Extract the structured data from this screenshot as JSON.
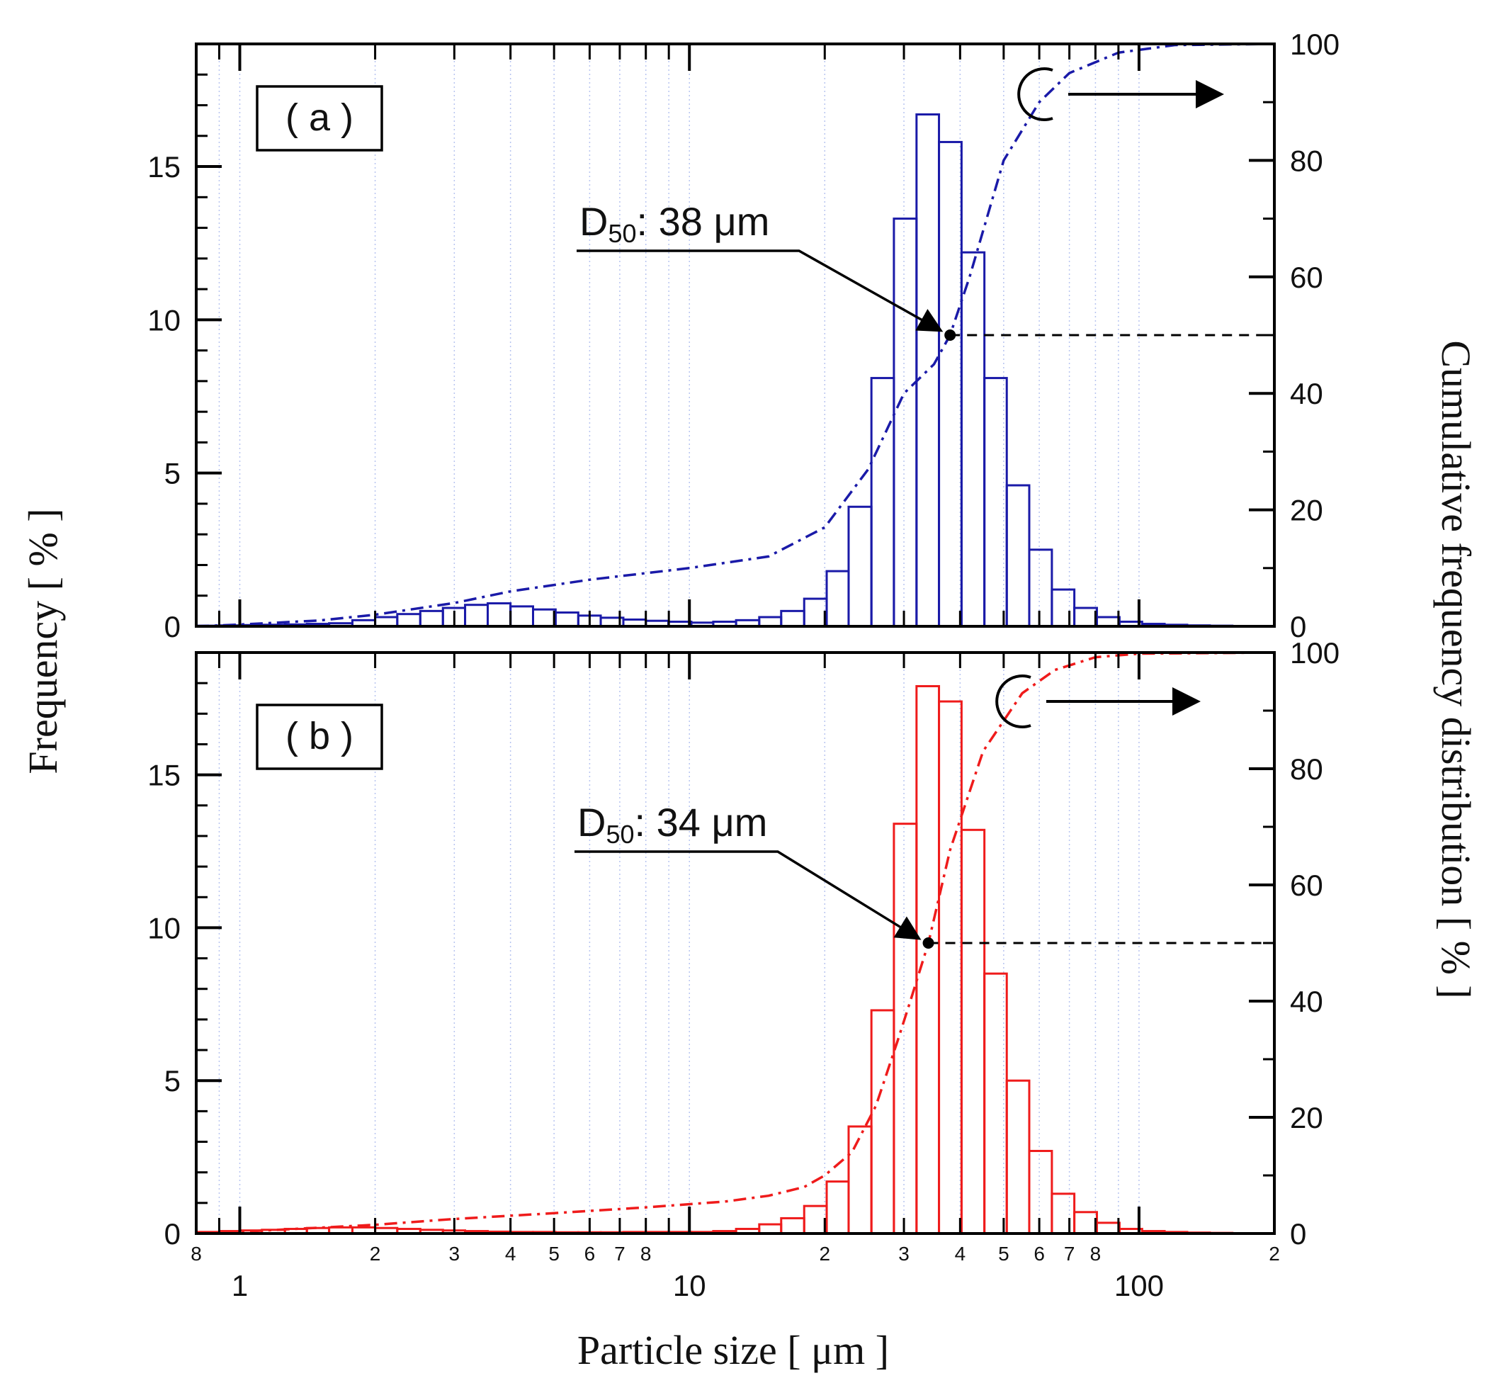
{
  "chart_data": [
    {
      "type": "bar",
      "panel_label": "( a )",
      "color": "#1a1aa8",
      "title": "",
      "xlabel": "Particle size [ μm ]",
      "ylabel": "Frequency [ % ]",
      "y2label": "Cumulative frequency distribution [ % ]",
      "xscale": "log",
      "xlim": [
        0.8,
        200
      ],
      "ylim": [
        0,
        19
      ],
      "y2lim": [
        0,
        100
      ],
      "y_ticks": [
        0,
        5,
        10,
        15
      ],
      "y2_ticks": [
        0,
        20,
        40,
        60,
        80,
        100
      ],
      "histogram": {
        "bin_edges": [
          0.8,
          0.9,
          1.0,
          1.12,
          1.26,
          1.41,
          1.58,
          1.78,
          2.0,
          2.24,
          2.52,
          2.83,
          3.17,
          3.56,
          4.0,
          4.49,
          5.04,
          5.66,
          6.35,
          7.13,
          8.0,
          8.98,
          10.1,
          11.3,
          12.7,
          14.3,
          16.0,
          18.0,
          20.2,
          22.6,
          25.4,
          28.5,
          32.0,
          35.9,
          40.3,
          45.3,
          50.8,
          57.0,
          64.0,
          71.8,
          80.6,
          90.5,
          101.6,
          114.0,
          128.0,
          143.7,
          161.3,
          181.0,
          200.0
        ],
        "values": [
          0.02,
          0.03,
          0.04,
          0.05,
          0.06,
          0.08,
          0.1,
          0.2,
          0.3,
          0.4,
          0.5,
          0.6,
          0.7,
          0.75,
          0.65,
          0.55,
          0.45,
          0.35,
          0.28,
          0.22,
          0.18,
          0.15,
          0.12,
          0.15,
          0.2,
          0.3,
          0.5,
          0.9,
          1.8,
          3.9,
          8.1,
          13.3,
          16.7,
          15.8,
          12.2,
          8.1,
          4.6,
          2.5,
          1.2,
          0.6,
          0.3,
          0.15,
          0.08,
          0.05,
          0.03,
          0.02,
          0.01,
          0.01
        ]
      },
      "cumulative": {
        "x": [
          0.8,
          1.0,
          1.5,
          2.0,
          3.0,
          4.0,
          6.0,
          10.0,
          15.0,
          20.0,
          25.0,
          30.0,
          35.0,
          38.0,
          42.0,
          50.0,
          60.0,
          70.0,
          90.0,
          120.0,
          200.0
        ],
        "y": [
          0,
          0.3,
          1,
          2,
          4,
          6,
          8,
          10,
          12,
          17,
          27,
          40,
          45,
          50,
          60,
          80,
          90,
          95,
          98.5,
          99.8,
          100
        ]
      },
      "d50": {
        "label_main": "D",
        "label_sub": "50",
        "label_rest": ": 38 μm",
        "x": 38,
        "cumulative_value": 50
      }
    },
    {
      "type": "bar",
      "panel_label": "( b )",
      "color": "#ef1b1b",
      "title": "",
      "xlabel": "Particle size [ μm ]",
      "ylabel": "Frequency [ % ]",
      "y2label": "Cumulative frequency distribution [ % ]",
      "xscale": "log",
      "xlim": [
        0.8,
        200
      ],
      "ylim": [
        0,
        19
      ],
      "y2lim": [
        0,
        100
      ],
      "y_ticks": [
        0,
        5,
        10,
        15
      ],
      "y2_ticks": [
        0,
        20,
        40,
        60,
        80,
        100
      ],
      "histogram": {
        "bin_edges": [
          0.8,
          0.9,
          1.0,
          1.12,
          1.26,
          1.41,
          1.58,
          1.78,
          2.0,
          2.24,
          2.52,
          2.83,
          3.17,
          3.56,
          4.0,
          4.49,
          5.04,
          5.66,
          6.35,
          7.13,
          8.0,
          8.98,
          10.1,
          11.3,
          12.7,
          14.3,
          16.0,
          18.0,
          20.2,
          22.6,
          25.4,
          28.5,
          32.0,
          35.9,
          40.3,
          45.3,
          50.8,
          57.0,
          64.0,
          71.8,
          80.6,
          90.5,
          101.6,
          114.0,
          128.0,
          143.7,
          161.3,
          181.0,
          200.0
        ],
        "values": [
          0.05,
          0.08,
          0.1,
          0.12,
          0.15,
          0.18,
          0.2,
          0.2,
          0.18,
          0.15,
          0.12,
          0.1,
          0.08,
          0.06,
          0.05,
          0.05,
          0.04,
          0.04,
          0.04,
          0.05,
          0.05,
          0.05,
          0.05,
          0.08,
          0.15,
          0.3,
          0.5,
          0.9,
          1.7,
          3.5,
          7.3,
          13.4,
          17.9,
          17.4,
          13.2,
          8.5,
          5.0,
          2.7,
          1.3,
          0.7,
          0.35,
          0.15,
          0.08,
          0.05,
          0.03,
          0.02,
          0.01,
          0.01
        ]
      },
      "cumulative": {
        "x": [
          0.8,
          1.0,
          1.5,
          2.0,
          3.0,
          5.0,
          8.0,
          12.0,
          15.0,
          18.0,
          20.0,
          23.0,
          26.0,
          29.0,
          31.0,
          34.0,
          38.0,
          45.0,
          55.0,
          65.0,
          80.0,
          100.0,
          200.0
        ],
        "y": [
          0,
          0.3,
          1,
          1.5,
          2.5,
          3.5,
          4.5,
          5.5,
          6.5,
          8,
          10,
          14,
          22,
          33,
          40,
          50,
          66,
          83,
          93,
          97,
          99.2,
          99.8,
          100
        ]
      },
      "d50": {
        "label_main": "D",
        "label_sub": "50",
        "label_rest": ": 34 μm",
        "x": 34,
        "cumulative_value": 50
      }
    }
  ],
  "x_axis": {
    "major_ticks": [
      {
        "value": 1,
        "label": "1"
      },
      {
        "value": 10,
        "label": "10"
      },
      {
        "value": 100,
        "label": "100"
      }
    ],
    "minor_ticks": [
      {
        "value": 0.8,
        "label": "8"
      },
      {
        "value": 2,
        "label": "2"
      },
      {
        "value": 3,
        "label": "3"
      },
      {
        "value": 4,
        "label": "4"
      },
      {
        "value": 5,
        "label": "5"
      },
      {
        "value": 6,
        "label": "6"
      },
      {
        "value": 7,
        "label": "7"
      },
      {
        "value": 8,
        "label": "8"
      },
      {
        "value": 20,
        "label": "2"
      },
      {
        "value": 30,
        "label": "3"
      },
      {
        "value": 40,
        "label": "4"
      },
      {
        "value": 50,
        "label": "5"
      },
      {
        "value": 60,
        "label": "6"
      },
      {
        "value": 70,
        "label": "7"
      },
      {
        "value": 80,
        "label": "8"
      },
      {
        "value": 200,
        "label": "2"
      }
    ],
    "minor_unlabeled": [
      0.9,
      9,
      90
    ]
  },
  "labels": {
    "xlabel": "Particle size [ μm ]",
    "ylabel": "Frequency [ % ]",
    "y2label": "Cumulative frequency distribution [ % ]"
  }
}
